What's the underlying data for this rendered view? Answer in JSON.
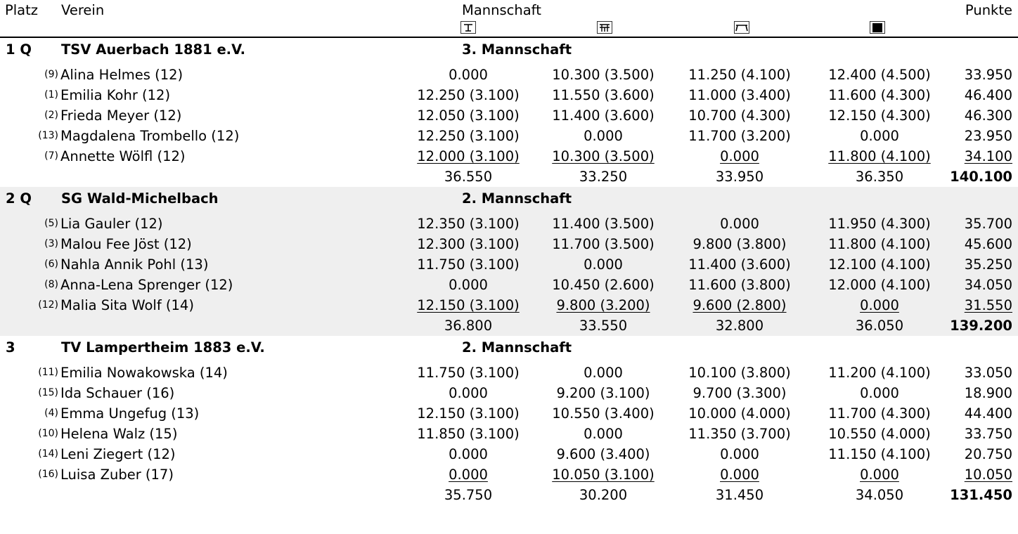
{
  "header": {
    "platz": "Platz",
    "verein": "Verein",
    "mannschaft": "Mannschaft",
    "punkte": "Punkte"
  },
  "apparatus_icons": [
    "vault-icon",
    "uneven-bars-icon",
    "beam-icon",
    "floor-icon"
  ],
  "teams": [
    {
      "rank": "1 Q",
      "club": "TSV Auerbach 1881 e.V.",
      "team": "3. Mannschaft",
      "athletes": [
        {
          "seed": "(9)",
          "name": "Alina Helmes (12)",
          "s1": "0.000",
          "s2": "10.300 (3.500)",
          "s3": "11.250 (4.100)",
          "s4": "12.400 (4.500)",
          "total": "33.950"
        },
        {
          "seed": "(1)",
          "name": "Emilia Kohr (12)",
          "s1": "12.250 (3.100)",
          "s2": "11.550 (3.600)",
          "s3": "11.000 (3.400)",
          "s4": "11.600 (4.300)",
          "total": "46.400"
        },
        {
          "seed": "(2)",
          "name": "Frieda Meyer (12)",
          "s1": "12.050 (3.100)",
          "s2": "11.400 (3.600)",
          "s3": "10.700 (4.300)",
          "s4": "12.150 (4.300)",
          "total": "46.300"
        },
        {
          "seed": "(13)",
          "name": "Magdalena Trombello (12)",
          "s1": "12.250 (3.100)",
          "s2": "0.000",
          "s3": "11.700 (3.200)",
          "s4": "0.000",
          "total": "23.950"
        },
        {
          "seed": "(7)",
          "name": "Annette Wölfl (12)",
          "s1": "12.000 (3.100)",
          "s2": "10.300 (3.500)",
          "s3": "0.000",
          "s4": "11.800 (4.100)",
          "total": "34.100"
        }
      ],
      "sums": {
        "s1": "36.550",
        "s2": "33.250",
        "s3": "33.950",
        "s4": "36.350",
        "total": "140.100"
      }
    },
    {
      "rank": "2 Q",
      "club": "SG Wald-Michelbach",
      "team": "2. Mannschaft",
      "athletes": [
        {
          "seed": "(5)",
          "name": "Lia Gauler (12)",
          "s1": "12.350 (3.100)",
          "s2": "11.400 (3.500)",
          "s3": "0.000",
          "s4": "11.950 (4.300)",
          "total": "35.700"
        },
        {
          "seed": "(3)",
          "name": "Malou Fee Jöst (12)",
          "s1": "12.300 (3.100)",
          "s2": "11.700 (3.500)",
          "s3": "9.800 (3.800)",
          "s4": "11.800 (4.100)",
          "total": "45.600"
        },
        {
          "seed": "(6)",
          "name": "Nahla Annik Pohl (13)",
          "s1": "11.750 (3.100)",
          "s2": "0.000",
          "s3": "11.400 (3.600)",
          "s4": "12.100 (4.100)",
          "total": "35.250"
        },
        {
          "seed": "(8)",
          "name": "Anna-Lena Sprenger (12)",
          "s1": "0.000",
          "s2": "10.450 (2.600)",
          "s3": "11.600 (3.800)",
          "s4": "12.000 (4.100)",
          "total": "34.050"
        },
        {
          "seed": "(12)",
          "name": "Malia Sita Wolf (14)",
          "s1": "12.150 (3.100)",
          "s2": "9.800 (3.200)",
          "s3": "9.600 (2.800)",
          "s4": "0.000",
          "total": "31.550"
        }
      ],
      "sums": {
        "s1": "36.800",
        "s2": "33.550",
        "s3": "32.800",
        "s4": "36.050",
        "total": "139.200"
      }
    },
    {
      "rank": "3",
      "club": "TV Lampertheim 1883 e.V.",
      "team": "2. Mannschaft",
      "athletes": [
        {
          "seed": "(11)",
          "name": "Emilia Nowakowska (14)",
          "s1": "11.750 (3.100)",
          "s2": "0.000",
          "s3": "10.100 (3.800)",
          "s4": "11.200 (4.100)",
          "total": "33.050"
        },
        {
          "seed": "(15)",
          "name": "Ida Schauer (16)",
          "s1": "0.000",
          "s2": "9.200 (3.100)",
          "s3": "9.700 (3.300)",
          "s4": "0.000",
          "total": "18.900"
        },
        {
          "seed": "(4)",
          "name": "Emma Ungefug (13)",
          "s1": "12.150 (3.100)",
          "s2": "10.550 (3.400)",
          "s3": "10.000 (4.000)",
          "s4": "11.700 (4.300)",
          "total": "44.400"
        },
        {
          "seed": "(10)",
          "name": "Helena Walz (15)",
          "s1": "11.850 (3.100)",
          "s2": "0.000",
          "s3": "11.350 (3.700)",
          "s4": "10.550 (4.000)",
          "total": "33.750"
        },
        {
          "seed": "(14)",
          "name": "Leni Ziegert (12)",
          "s1": "0.000",
          "s2": "9.600 (3.400)",
          "s3": "0.000",
          "s4": "11.150 (4.100)",
          "total": "20.750"
        },
        {
          "seed": "(16)",
          "name": "Luisa Zuber (17)",
          "s1": "0.000",
          "s2": "10.050 (3.100)",
          "s3": "0.000",
          "s4": "0.000",
          "total": "10.050"
        }
      ],
      "sums": {
        "s1": "35.750",
        "s2": "30.200",
        "s3": "31.450",
        "s4": "34.050",
        "total": "131.450"
      }
    }
  ]
}
